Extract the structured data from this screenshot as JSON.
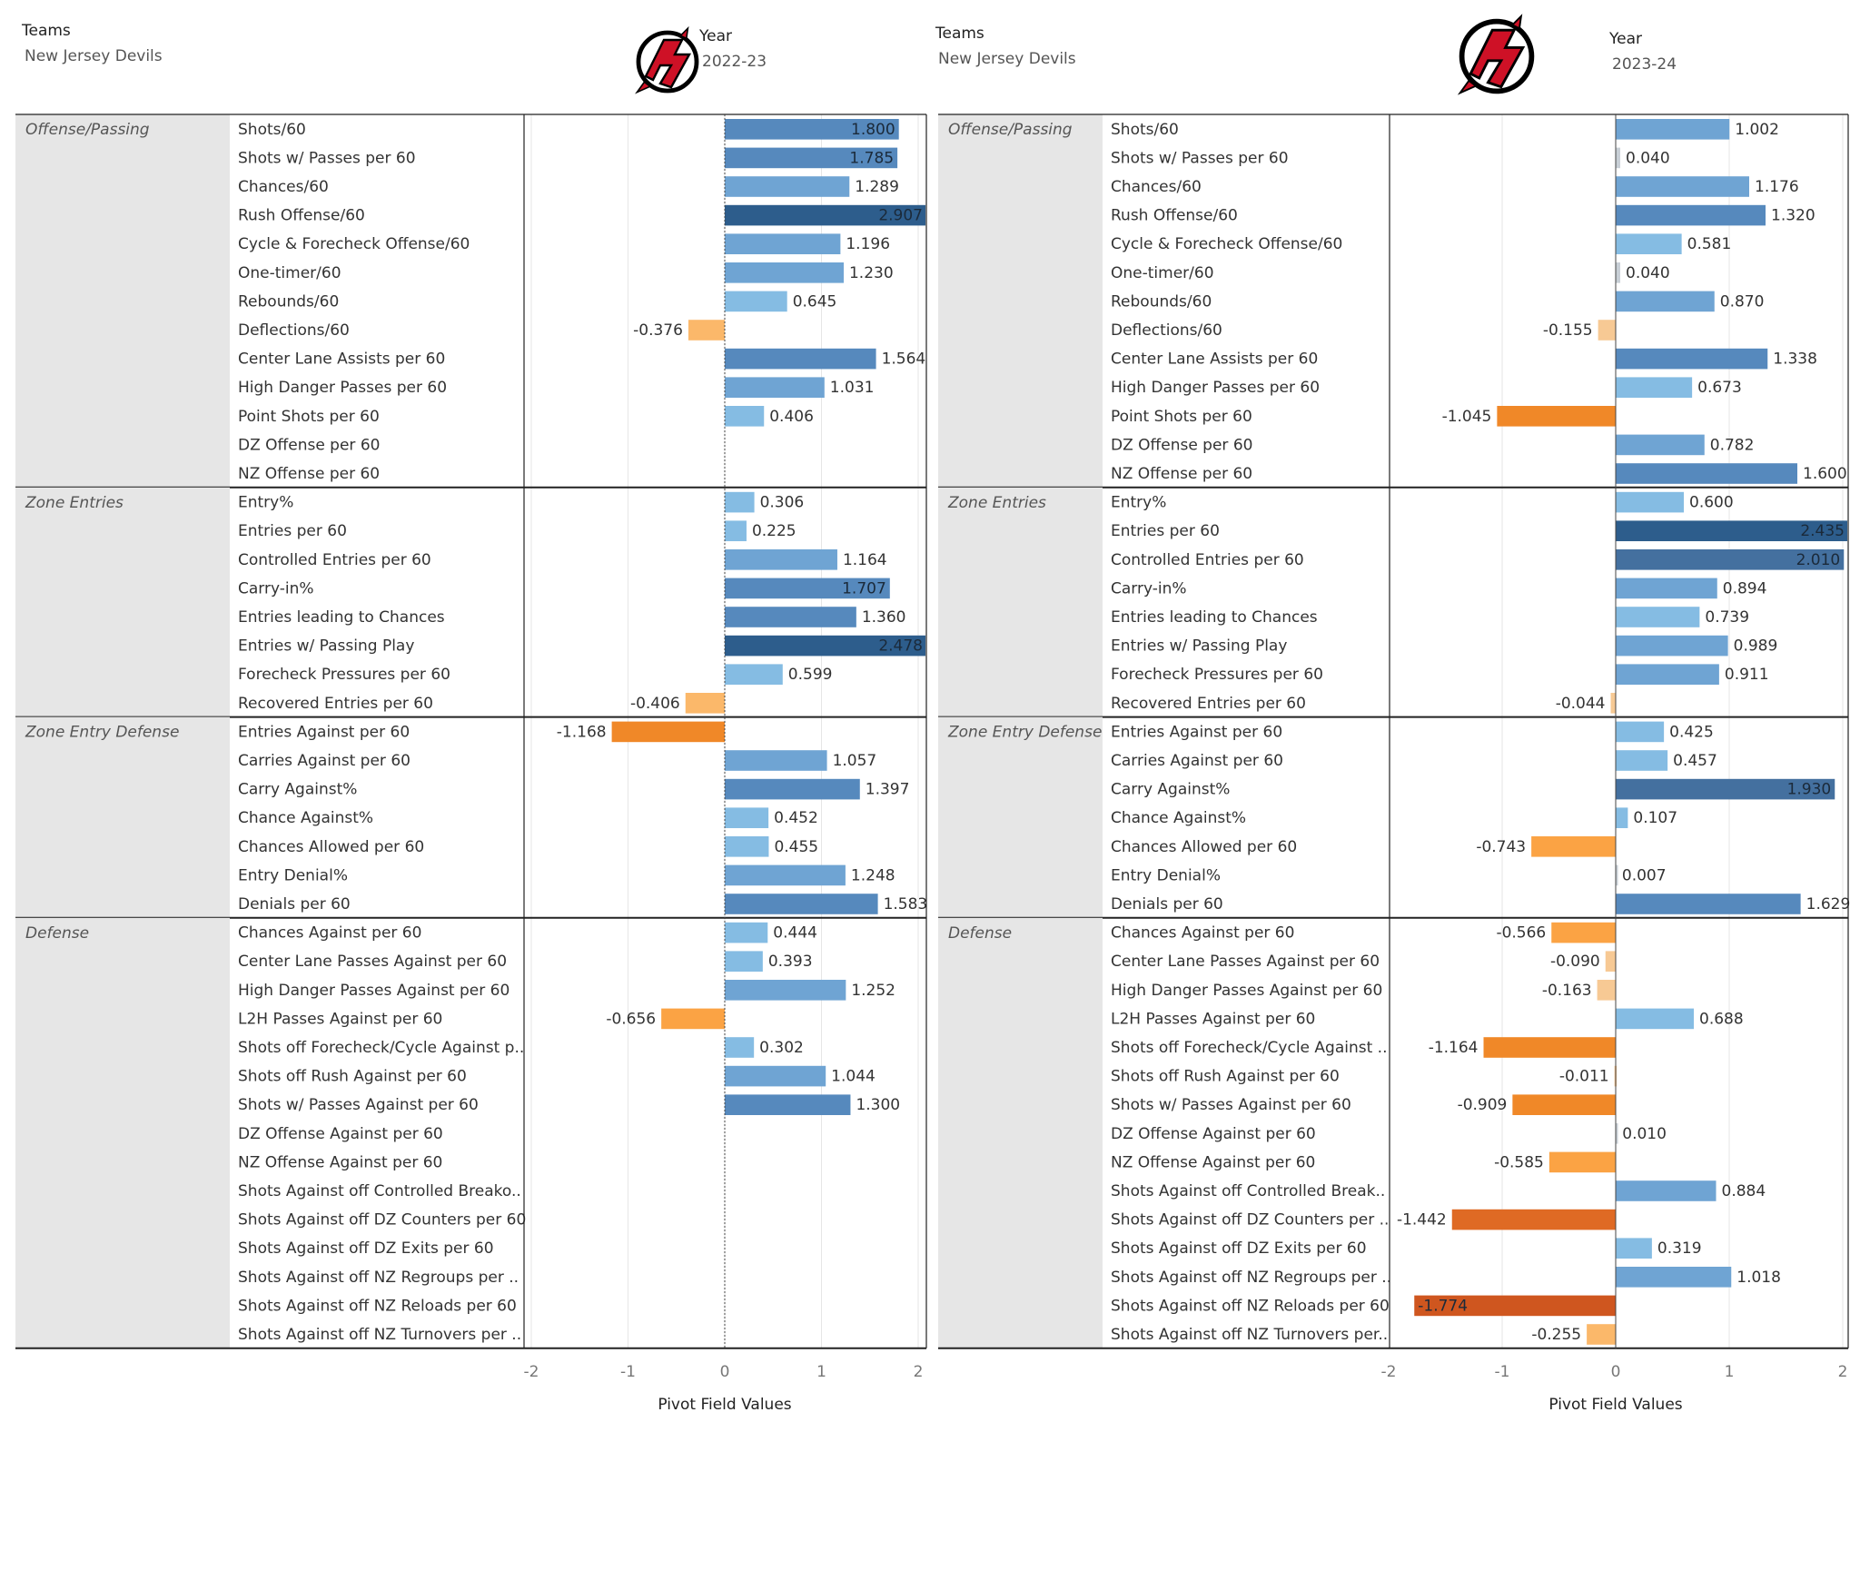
{
  "panels": [
    {
      "teams_title": "Teams",
      "teams_value": "New Jersey Devils",
      "year_title": "Year",
      "year_value": "2022-23",
      "axis_title": "Pivot Field Values",
      "ticks": [
        "-2",
        "-1",
        "0",
        "1",
        "2"
      ],
      "groups": [
        {
          "name": "Offense/Passing",
          "metrics": [
            {
              "label": "Shots/60",
              "value": 1.8,
              "text": "1.800"
            },
            {
              "label": "Shots w/ Passes per 60",
              "value": 1.785,
              "text": "1.785"
            },
            {
              "label": "Chances/60",
              "value": 1.289,
              "text": "1.289"
            },
            {
              "label": "Rush Offense/60",
              "value": 2.907,
              "text": "2.907"
            },
            {
              "label": "Cycle & Forecheck Offense/60",
              "value": 1.196,
              "text": "1.196"
            },
            {
              "label": "One-timer/60",
              "value": 1.23,
              "text": "1.230"
            },
            {
              "label": "Rebounds/60",
              "value": 0.645,
              "text": "0.645"
            },
            {
              "label": "Deflections/60",
              "value": -0.376,
              "text": "-0.376"
            },
            {
              "label": "Center Lane Assists per 60",
              "value": 1.564,
              "text": "1.564"
            },
            {
              "label": "High Danger Passes per 60",
              "value": 1.031,
              "text": "1.031"
            },
            {
              "label": "Point Shots per 60",
              "value": 0.406,
              "text": "0.406"
            },
            {
              "label": "DZ Offense per 60",
              "value": null,
              "text": ""
            },
            {
              "label": "NZ Offense per 60",
              "value": null,
              "text": ""
            }
          ]
        },
        {
          "name": "Zone Entries",
          "metrics": [
            {
              "label": "Entry%",
              "value": 0.306,
              "text": "0.306"
            },
            {
              "label": "Entries per 60",
              "value": 0.225,
              "text": "0.225"
            },
            {
              "label": "Controlled Entries per 60",
              "value": 1.164,
              "text": "1.164"
            },
            {
              "label": "Carry-in%",
              "value": 1.707,
              "text": "1.707"
            },
            {
              "label": "Entries leading to Chances",
              "value": 1.36,
              "text": "1.360"
            },
            {
              "label": "Entries w/ Passing Play",
              "value": 2.478,
              "text": "2.478"
            },
            {
              "label": "Forecheck Pressures per 60",
              "value": 0.599,
              "text": "0.599"
            },
            {
              "label": "Recovered Entries per 60",
              "value": -0.406,
              "text": "-0.406"
            }
          ]
        },
        {
          "name": "Zone Entry Defense",
          "metrics": [
            {
              "label": "Entries Against per 60",
              "value": -1.168,
              "text": "-1.168"
            },
            {
              "label": "Carries Against per 60",
              "value": 1.057,
              "text": "1.057"
            },
            {
              "label": "Carry Against%",
              "value": 1.397,
              "text": "1.397"
            },
            {
              "label": "Chance Against%",
              "value": 0.452,
              "text": "0.452"
            },
            {
              "label": "Chances Allowed per 60",
              "value": 0.455,
              "text": "0.455"
            },
            {
              "label": "Entry Denial%",
              "value": 1.248,
              "text": "1.248"
            },
            {
              "label": "Denials per 60",
              "value": 1.583,
              "text": "1.583"
            }
          ]
        },
        {
          "name": "Defense",
          "metrics": [
            {
              "label": "Chances Against per 60",
              "value": 0.444,
              "text": "0.444"
            },
            {
              "label": "Center Lane Passes Against per 60",
              "value": 0.393,
              "text": "0.393"
            },
            {
              "label": "High Danger Passes Against per 60",
              "value": 1.252,
              "text": "1.252"
            },
            {
              "label": "L2H Passes Against per 60",
              "value": -0.656,
              "text": "-0.656"
            },
            {
              "label": "Shots off Forecheck/Cycle Against p..",
              "value": 0.302,
              "text": "0.302"
            },
            {
              "label": "Shots off Rush Against per 60",
              "value": 1.044,
              "text": "1.044"
            },
            {
              "label": "Shots w/ Passes Against per 60",
              "value": 1.3,
              "text": "1.300"
            },
            {
              "label": "DZ Offense Against per 60",
              "value": null,
              "text": ""
            },
            {
              "label": "NZ Offense Against per 60",
              "value": null,
              "text": ""
            },
            {
              "label": "Shots Against off Controlled Breako..",
              "value": null,
              "text": ""
            },
            {
              "label": "Shots Against off DZ Counters per 60",
              "value": null,
              "text": ""
            },
            {
              "label": "Shots Against off DZ Exits per 60",
              "value": null,
              "text": ""
            },
            {
              "label": "Shots Against off NZ Regroups per ..",
              "value": null,
              "text": ""
            },
            {
              "label": "Shots Against off NZ Reloads per 60",
              "value": null,
              "text": ""
            },
            {
              "label": "Shots Against off NZ Turnovers per ..",
              "value": null,
              "text": ""
            }
          ]
        }
      ]
    },
    {
      "teams_title": "Teams",
      "teams_value": "New Jersey Devils",
      "year_title": "Year",
      "year_value": "2023-24",
      "axis_title": "Pivot Field Values",
      "ticks": [
        "-2",
        "-1",
        "0",
        "1",
        "2"
      ],
      "groups": [
        {
          "name": "Offense/Passing",
          "metrics": [
            {
              "label": "Shots/60",
              "value": 1.002,
              "text": "1.002"
            },
            {
              "label": "Shots w/ Passes per 60",
              "value": 0.04,
              "text": "0.040"
            },
            {
              "label": "Chances/60",
              "value": 1.176,
              "text": "1.176"
            },
            {
              "label": "Rush Offense/60",
              "value": 1.32,
              "text": "1.320"
            },
            {
              "label": "Cycle & Forecheck Offense/60",
              "value": 0.581,
              "text": "0.581"
            },
            {
              "label": "One-timer/60",
              "value": 0.04,
              "text": "0.040"
            },
            {
              "label": "Rebounds/60",
              "value": 0.87,
              "text": "0.870"
            },
            {
              "label": "Deflections/60",
              "value": -0.155,
              "text": "-0.155"
            },
            {
              "label": "Center Lane Assists per 60",
              "value": 1.338,
              "text": "1.338"
            },
            {
              "label": "High Danger Passes per 60",
              "value": 0.673,
              "text": "0.673"
            },
            {
              "label": "Point Shots per 60",
              "value": -1.045,
              "text": "-1.045"
            },
            {
              "label": "DZ Offense per 60",
              "value": 0.782,
              "text": "0.782"
            },
            {
              "label": "NZ Offense per 60",
              "value": 1.6,
              "text": "1.600"
            }
          ]
        },
        {
          "name": "Zone Entries",
          "metrics": [
            {
              "label": "Entry%",
              "value": 0.6,
              "text": "0.600"
            },
            {
              "label": "Entries per 60",
              "value": 2.435,
              "text": "2.435"
            },
            {
              "label": "Controlled Entries per 60",
              "value": 2.01,
              "text": "2.010"
            },
            {
              "label": "Carry-in%",
              "value": 0.894,
              "text": "0.894"
            },
            {
              "label": "Entries leading to Chances",
              "value": 0.739,
              "text": "0.739"
            },
            {
              "label": "Entries w/ Passing Play",
              "value": 0.989,
              "text": "0.989"
            },
            {
              "label": "Forecheck Pressures per 60",
              "value": 0.911,
              "text": "0.911"
            },
            {
              "label": "Recovered Entries per 60",
              "value": -0.044,
              "text": "-0.044"
            }
          ]
        },
        {
          "name": "Zone Entry Defense",
          "metrics": [
            {
              "label": "Entries Against per 60",
              "value": 0.425,
              "text": "0.425"
            },
            {
              "label": "Carries Against per 60",
              "value": 0.457,
              "text": "0.457"
            },
            {
              "label": "Carry Against%",
              "value": 1.93,
              "text": "1.930"
            },
            {
              "label": "Chance Against%",
              "value": 0.107,
              "text": "0.107"
            },
            {
              "label": "Chances Allowed per 60",
              "value": -0.743,
              "text": "-0.743"
            },
            {
              "label": "Entry Denial%",
              "value": 0.007,
              "text": "0.007"
            },
            {
              "label": "Denials per 60",
              "value": 1.629,
              "text": "1.629"
            }
          ]
        },
        {
          "name": "Defense",
          "metrics": [
            {
              "label": "Chances Against per 60",
              "value": -0.566,
              "text": "-0.566"
            },
            {
              "label": "Center Lane Passes Against per 60",
              "value": -0.09,
              "text": "-0.090"
            },
            {
              "label": "High Danger Passes Against per 60",
              "value": -0.163,
              "text": "-0.163"
            },
            {
              "label": "L2H Passes Against per 60",
              "value": 0.688,
              "text": "0.688"
            },
            {
              "label": "Shots off Forecheck/Cycle Against ..",
              "value": -1.164,
              "text": "-1.164"
            },
            {
              "label": "Shots off Rush Against per 60",
              "value": -0.011,
              "text": "-0.011"
            },
            {
              "label": "Shots w/ Passes Against per 60",
              "value": -0.909,
              "text": "-0.909"
            },
            {
              "label": "DZ Offense Against per 60",
              "value": 0.01,
              "text": "0.010"
            },
            {
              "label": "NZ Offense Against per 60",
              "value": -0.585,
              "text": "-0.585"
            },
            {
              "label": "Shots Against off Controlled Break..",
              "value": 0.884,
              "text": "0.884"
            },
            {
              "label": "Shots Against off DZ Counters per ..",
              "value": -1.442,
              "text": "-1.442"
            },
            {
              "label": "Shots Against off DZ Exits per 60",
              "value": 0.319,
              "text": "0.319"
            },
            {
              "label": "Shots Against off NZ Regroups per ..",
              "value": 1.018,
              "text": "1.018"
            },
            {
              "label": "Shots Against off NZ Reloads per 60",
              "value": -1.774,
              "text": "-1.774"
            },
            {
              "label": "Shots Against off NZ Turnovers per..",
              "value": -0.255,
              "text": "-0.255"
            }
          ]
        }
      ]
    }
  ],
  "chart_data": [
    {
      "type": "bar",
      "orientation": "horizontal",
      "title": "",
      "xlabel": "Pivot Field Values",
      "xlim": [
        -2,
        2
      ],
      "filter_team": "New Jersey Devils",
      "filter_year": "2022-23",
      "color_positive": "#4e79a7",
      "color_negative": "#f28e2b",
      "grid": true
    },
    {
      "type": "bar",
      "orientation": "horizontal",
      "title": "",
      "xlabel": "Pivot Field Values",
      "xlim": [
        -2,
        2
      ],
      "filter_team": "New Jersey Devils",
      "filter_year": "2023-24",
      "color_positive": "#4e79a7",
      "color_negative": "#f28e2b",
      "grid": true
    }
  ]
}
